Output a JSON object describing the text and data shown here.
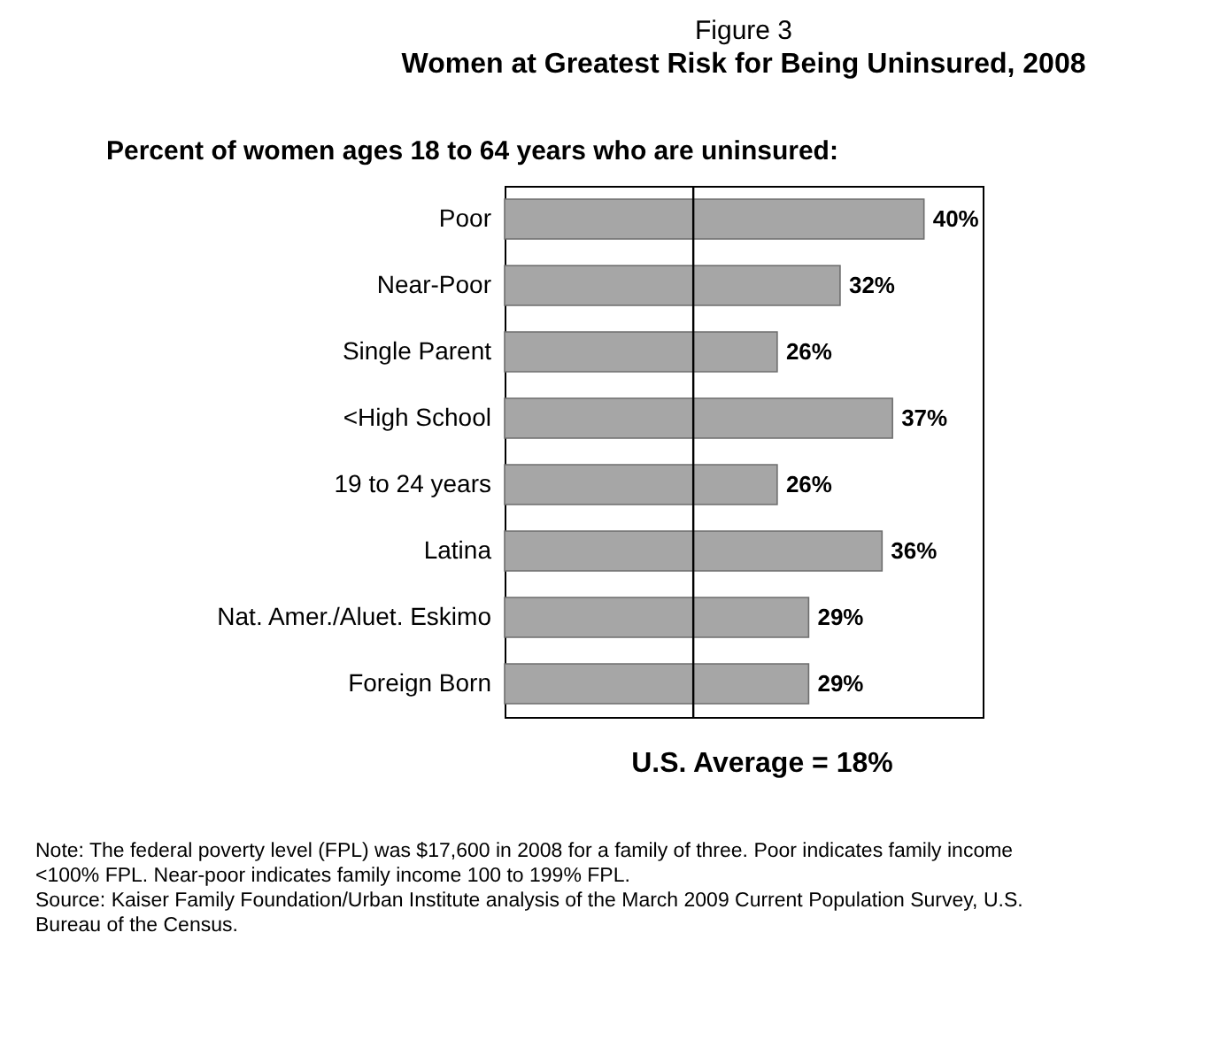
{
  "chart_data": {
    "type": "bar",
    "orientation": "horizontal",
    "title": "Figure 3",
    "subtitle": "Women at Greatest Risk for Being Uninsured, 2008",
    "categories": [
      "Poor",
      "Near-Poor",
      "Single Parent",
      "<High School",
      "19 to 24 years",
      "Latina",
      "Nat. Amer./Aluet. Eskimo",
      "Foreign Born"
    ],
    "values": [
      40,
      32,
      26,
      37,
      26,
      36,
      29,
      29
    ],
    "color": "#a6a6a6",
    "value_labels": [
      "40%",
      "32%",
      "26%",
      "37%",
      "26%",
      "36%",
      "29%",
      "29%"
    ],
    "ref_lines": [
      {
        "axis": "x",
        "value": 18,
        "label": "U.S. Average = 18%",
        "color": "#000000"
      }
    ],
    "annotations": [
      "Percent of women ages 18 to 64 years who are uninsured:",
      "Note:  The federal poverty level (FPL) was $17,600 in 2008 for a family of three. Poor indicates family income <100% FPL. Near-poor indicates family income 100 to 199% FPL.",
      "Source:  Kaiser Family Foundation/Urban Institute analysis of the March 2009 Current Population Survey, U.S. Bureau of the Census."
    ],
    "grid": false
  }
}
